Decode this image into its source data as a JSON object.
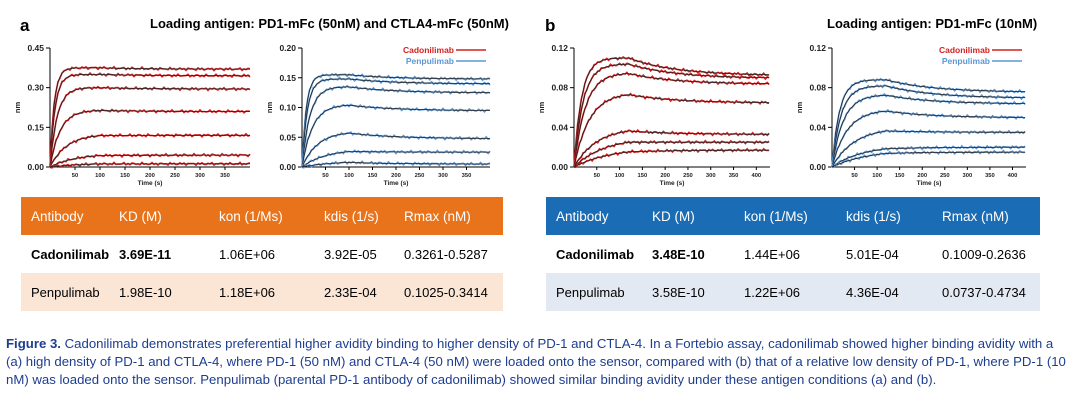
{
  "panel_a": {
    "letter": "a",
    "title": "Loading antigen: PD1-mFc (50nM) and CTLA4-mFc (50nM)",
    "table": {
      "header_color": "#e8731a",
      "alt_row_color": "#fbe6d6",
      "headers": [
        "Antibody",
        "KD (M)",
        "kon (1/Ms)",
        "kdis (1/s)",
        "Rmax (nM)"
      ],
      "rows": [
        [
          "Cadonilimab",
          "3.69E-11",
          "1.06E+06",
          "3.92E-05",
          "0.3261-0.5287"
        ],
        [
          "Penpulimab",
          "1.98E-10",
          "1.18E+06",
          "2.33E-04",
          "0.1025-0.3414"
        ]
      ]
    }
  },
  "panel_b": {
    "letter": "b",
    "title": "Loading antigen: PD1-mFc (10nM)",
    "table": {
      "header_color": "#1a6cb4",
      "alt_row_color": "#e3e9f3",
      "headers": [
        "Antibody",
        "KD (M)",
        "kon (1/Ms)",
        "kdis (1/s)",
        "Rmax (nM)"
      ],
      "rows": [
        [
          "Cadonilimab",
          "3.48E-10",
          "1.44E+06",
          "5.01E-04",
          "0.1009-0.2636"
        ],
        [
          "Penpulimab",
          "3.58E-10",
          "1.22E+06",
          "4.36E-04",
          "0.0737-0.4734"
        ]
      ]
    }
  },
  "caption": {
    "figure_label": "Figure 3.",
    "text": " Cadonilimab demonstrates preferential higher avidity binding to higher density of PD-1 and CTLA-4. In a Fortebio assay, cadonilimab showed higher binding avidity with a (a) high density of PD-1 and CTLA-4, where PD-1 (50 nM) and CTLA-4 (50 nM) were loaded onto the sensor, compared with (b) that of a relative low density of PD-1, where PD-1 (10 nM) was loaded onto the sensor. Penpulimab (parental PD-1 antibody of cadonilimab) showed similar binding avidity under these antigen conditions (a) and (b)."
  },
  "colors": {
    "cadonilimab": "#d42020",
    "penpulimab": "#5b97d6",
    "fit": "#222222"
  },
  "chart_data": [
    {
      "type": "line",
      "id": "a-cadonilimab",
      "ylabel": "nm",
      "xlabel": "Time (s)",
      "ylim": [
        0,
        0.45
      ],
      "yticks": [
        "0.00",
        "0.15",
        "0.30",
        "0.45"
      ],
      "xlim": [
        0,
        400
      ],
      "xticks": [
        "50",
        "100",
        "150",
        "200",
        "250",
        "300",
        "350"
      ],
      "legend": null,
      "series": [
        {
          "name": "Cadonilimab",
          "assoc_end": 100,
          "plateau": 0.375,
          "final": 0.37,
          "k": 0.12
        },
        {
          "plateau": 0.35,
          "final": 0.345,
          "k": 0.1
        },
        {
          "plateau": 0.3,
          "final": 0.295,
          "k": 0.07
        },
        {
          "plateau": 0.215,
          "final": 0.21,
          "k": 0.05
        },
        {
          "plateau": 0.125,
          "final": 0.12,
          "k": 0.03
        },
        {
          "plateau": 0.05,
          "final": 0.045,
          "k": 0.02
        },
        {
          "plateau": 0.015,
          "final": 0.012,
          "k": 0.015
        }
      ]
    },
    {
      "type": "line",
      "id": "a-penpulimab",
      "ylabel": "nm",
      "xlabel": "Time (s)",
      "ylim": [
        0,
        0.2
      ],
      "yticks": [
        "0.00",
        "0.05",
        "0.10",
        "0.15",
        "0.20"
      ],
      "xlim": [
        0,
        400
      ],
      "xticks": [
        "50",
        "100",
        "150",
        "200",
        "250",
        "300",
        "350"
      ],
      "legend": [
        {
          "name": "Cadonilimab",
          "color": "#d42020"
        },
        {
          "name": "Penpulimab",
          "color": "#5b97d6"
        }
      ],
      "series": [
        {
          "name": "Penpulimab",
          "assoc_end": 100,
          "plateau": 0.155,
          "final": 0.148,
          "k": 0.11
        },
        {
          "plateau": 0.148,
          "final": 0.14,
          "k": 0.09
        },
        {
          "plateau": 0.135,
          "final": 0.125,
          "k": 0.06
        },
        {
          "plateau": 0.105,
          "final": 0.095,
          "k": 0.045
        },
        {
          "plateau": 0.06,
          "final": 0.048,
          "k": 0.03
        },
        {
          "plateau": 0.03,
          "final": 0.025,
          "k": 0.02
        },
        {
          "plateau": 0.01,
          "final": 0.005,
          "k": 0.015
        }
      ]
    },
    {
      "type": "line",
      "id": "b-cadonilimab",
      "ylabel": "nm",
      "xlabel": "Time (s)",
      "ylim": [
        0,
        0.12
      ],
      "yticks": [
        "0.00",
        "0.04",
        "0.08",
        "0.12"
      ],
      "xlim": [
        0,
        430
      ],
      "xticks": [
        "50",
        "100",
        "150",
        "200",
        "250",
        "300",
        "350",
        "400"
      ],
      "legend": null,
      "series": [
        {
          "name": "Cadonilimab",
          "assoc_end": 120,
          "plateau": 0.11,
          "final": 0.093,
          "k": 0.06
        },
        {
          "plateau": 0.104,
          "final": 0.09,
          "k": 0.05
        },
        {
          "plateau": 0.095,
          "final": 0.084,
          "k": 0.04
        },
        {
          "plateau": 0.075,
          "final": 0.065,
          "k": 0.03
        },
        {
          "plateau": 0.04,
          "final": 0.033,
          "k": 0.02
        },
        {
          "plateau": 0.03,
          "final": 0.025,
          "k": 0.015
        },
        {
          "plateau": 0.02,
          "final": 0.017,
          "k": 0.012
        }
      ]
    },
    {
      "type": "line",
      "id": "b-penpulimab",
      "ylabel": "nm",
      "xlabel": "Time (s)",
      "ylim": [
        0,
        0.12
      ],
      "yticks": [
        "0.00",
        "0.04",
        "0.08",
        "0.12"
      ],
      "xlim": [
        0,
        430
      ],
      "xticks": [
        "50",
        "100",
        "150",
        "200",
        "250",
        "300",
        "350",
        "400"
      ],
      "legend": [
        {
          "name": "Cadonilimab",
          "color": "#d42020"
        },
        {
          "name": "Penpulimab",
          "color": "#5b97d6"
        }
      ],
      "series": [
        {
          "name": "Penpulimab",
          "assoc_end": 120,
          "plateau": 0.088,
          "final": 0.076,
          "k": 0.06
        },
        {
          "plateau": 0.082,
          "final": 0.07,
          "k": 0.05
        },
        {
          "plateau": 0.073,
          "final": 0.064,
          "k": 0.04
        },
        {
          "plateau": 0.058,
          "final": 0.05,
          "k": 0.03
        },
        {
          "plateau": 0.04,
          "final": 0.035,
          "k": 0.02
        },
        {
          "plateau": 0.022,
          "final": 0.02,
          "k": 0.015
        },
        {
          "plateau": 0.018,
          "final": 0.015,
          "k": 0.012
        }
      ]
    }
  ]
}
